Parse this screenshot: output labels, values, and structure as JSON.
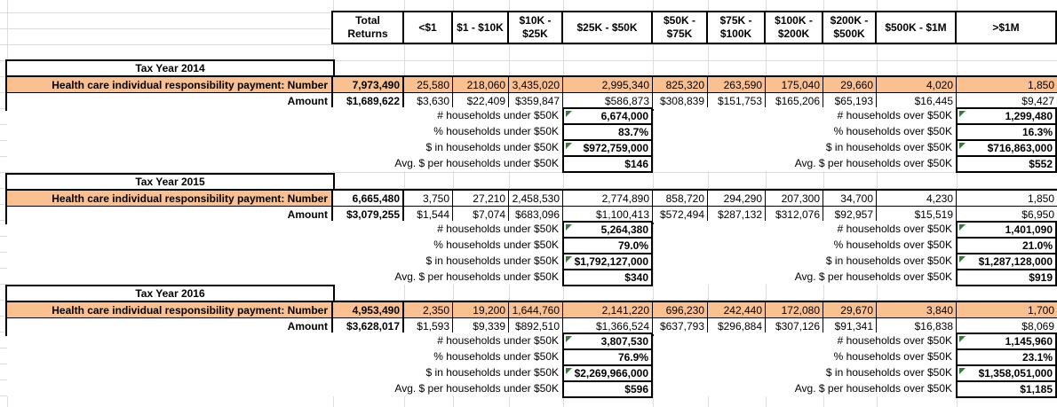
{
  "colors": {
    "highlight_orange": "#FAC090",
    "note_indicator_green": "#2E7D32",
    "gridline_gray": "#DCDCDC",
    "border_black": "#000000"
  },
  "header": {
    "columns": [
      "Total Returns",
      "<$1",
      "$1 - $10K",
      "$10K - $25K",
      "$25K - $50K",
      "$50K - $75K",
      "$75K - $100K",
      "$100K - $200K",
      "$200K - $500K",
      "$500K - $1M",
      ">$1M"
    ]
  },
  "labels": {
    "number_label": "Health care individual responsibility payment: Number",
    "amount_label": "Amount",
    "hh_under_label": "# households under $50K",
    "pct_under_label": "% households under $50K",
    "usd_under_label": "$ in households under $50K",
    "avg_under_label": "Avg. $ per households under $50K",
    "hh_over_label": "# households over $50K",
    "pct_over_label": "% households over $50K",
    "usd_over_label": "$ in households over $50K",
    "avg_over_label": "Avg. $ per households over $50K"
  },
  "sections": [
    {
      "title": "Tax Year 2014",
      "number": [
        "7,973,490",
        "25,580",
        "218,060",
        "3,435,020",
        "2,995,340",
        "825,320",
        "263,590",
        "175,040",
        "29,660",
        "4,020",
        "1,850"
      ],
      "amount": [
        "$1,689,622",
        "$3,630",
        "$22,409",
        "$359,847",
        "$586,873",
        "$308,839",
        "$151,753",
        "$165,206",
        "$65,193",
        "$16,445",
        "$9,427"
      ],
      "hh_under": "6,674,000",
      "pct_under": "83.7%",
      "usd_under": "$972,759,000",
      "avg_under": "$146",
      "hh_over": "1,299,480",
      "pct_over": "16.3%",
      "usd_over": "$716,863,000",
      "avg_over": "$552"
    },
    {
      "title": "Tax Year 2015",
      "number": [
        "6,665,480",
        "3,750",
        "27,210",
        "2,458,530",
        "2,774,890",
        "858,720",
        "294,290",
        "207,300",
        "34,700",
        "4,230",
        "1,850"
      ],
      "amount": [
        "$3,079,255",
        "$1,544",
        "$7,074",
        "$683,096",
        "$1,100,413",
        "$572,494",
        "$287,132",
        "$312,076",
        "$92,957",
        "$15,519",
        "$6,950"
      ],
      "hh_under": "5,264,380",
      "pct_under": "79.0%",
      "usd_under": "$1,792,127,000",
      "avg_under": "$340",
      "hh_over": "1,401,090",
      "pct_over": "21.0%",
      "usd_over": "$1,287,128,000",
      "avg_over": "$919"
    },
    {
      "title": "Tax Year 2016",
      "number": [
        "4,953,490",
        "2,350",
        "19,200",
        "1,644,760",
        "2,141,220",
        "696,230",
        "242,440",
        "172,080",
        "29,670",
        "3,840",
        "1,700"
      ],
      "amount": [
        "$3,628,017",
        "$1,593",
        "$9,339",
        "$892,510",
        "$1,366,524",
        "$637,793",
        "$296,884",
        "$307,126",
        "$91,341",
        "$16,838",
        "$8,069"
      ],
      "hh_under": "3,807,530",
      "pct_under": "76.9%",
      "usd_under": "$2,269,966,000",
      "avg_under": "$596",
      "hh_over": "1,145,960",
      "pct_over": "23.1%",
      "usd_over": "$1,358,051,000",
      "avg_over": "$1,185"
    }
  ]
}
